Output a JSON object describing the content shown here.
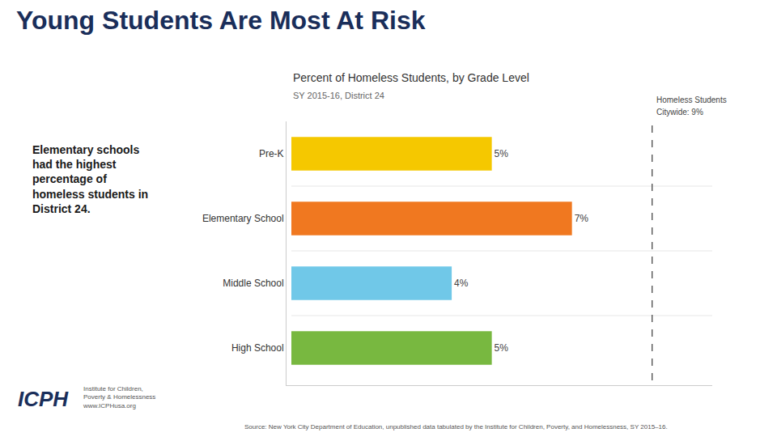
{
  "chart_data": {
    "type": "bar",
    "orientation": "horizontal",
    "title": "Young Students Are Most At Risk",
    "subtitle": "Percent of Homeless Students, by Grade Level",
    "annotations": [
      "SY 2015-16, District 24",
      "Elementary schools\nhad the highest\npercentage of\nhomeless students in\nDistrict 24.",
      "Source: New York City Department of Education, unpublished data tabulated by the Institute for Children, Poverty, and Homelessness, SY 2015–16.",
      "ICPH",
      "Institute for Children,\nPoverty & Homelessness\nwww.ICPHusa.org"
    ],
    "categories": [
      "Pre-K",
      "Elementary School",
      "Middle School",
      "High School"
    ],
    "values": [
      5,
      7,
      4,
      5
    ],
    "value_labels": [
      "5%",
      "7%",
      "4%",
      "5%"
    ],
    "colors": [
      "#F5C800",
      "#F07820",
      "#70C8E8",
      "#78B840"
    ],
    "data_labels": true,
    "reference_line": {
      "value": 9,
      "labels": [
        "Homeless Students",
        "Citywide: 9%"
      ]
    },
    "xlim": [
      0,
      10.5
    ],
    "xticks": [],
    "tick_labels": "y",
    "grid": false
  }
}
